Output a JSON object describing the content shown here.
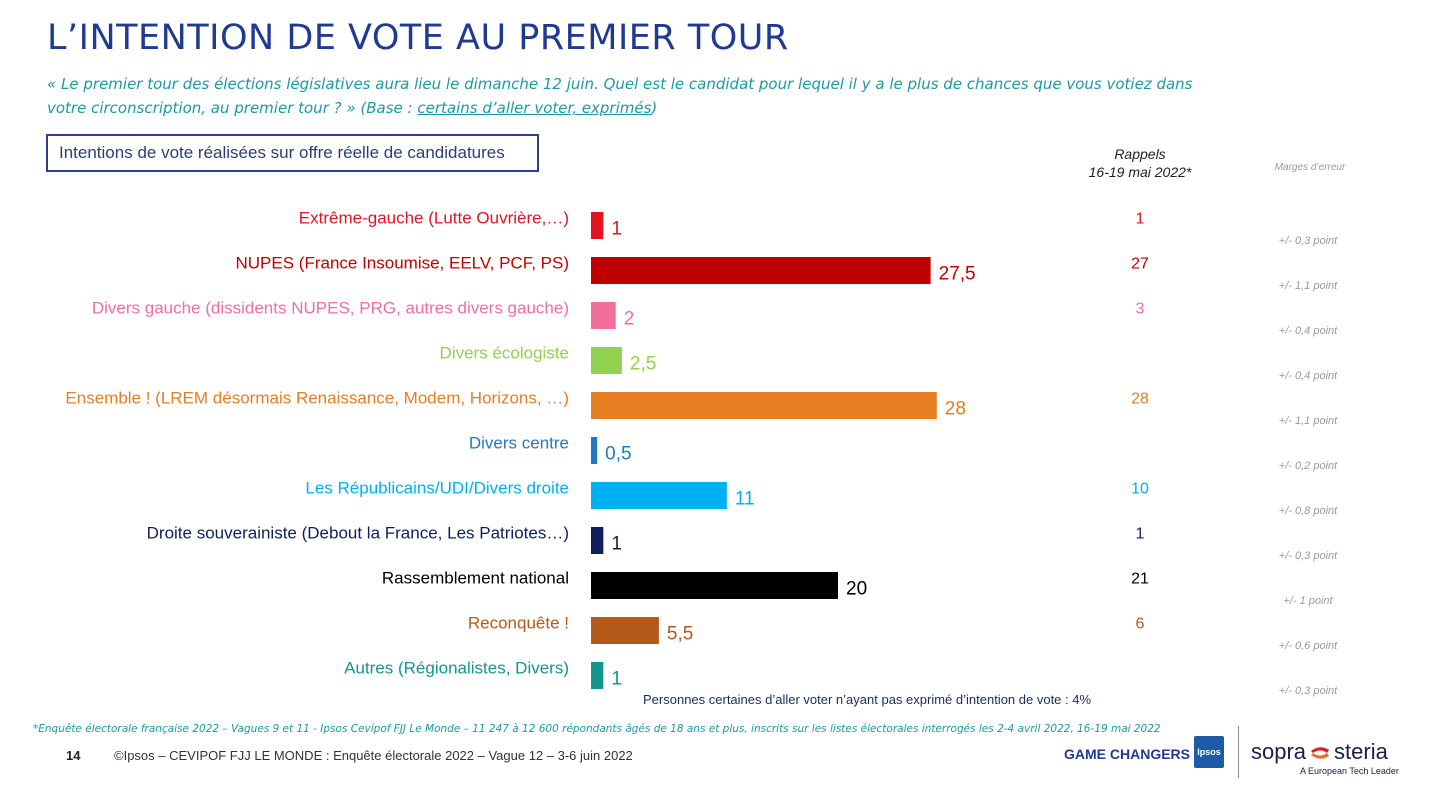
{
  "header": {
    "title": "L’INTENTION DE VOTE AU PREMIER TOUR",
    "question_text": "« Le premier tour des élections législatives aura lieu le dimanche 12 juin. Quel est le candidat pour lequel il y a le plus de chances que vous votiez dans votre circonscription, au premier tour ? » (Base : ",
    "question_base": "certains d’aller voter, exprimés",
    "question_end": ")",
    "box_label": "Intentions de vote réalisées sur offre réelle de candidatures"
  },
  "columns": {
    "rappels_title": "Rappels",
    "rappels_date": "16-19 mai 2022*",
    "marges_title": "Marges d’erreur"
  },
  "chart_data": {
    "type": "bar",
    "orientation": "horizontal",
    "title": "L’INTENTION DE VOTE AU PREMIER TOUR",
    "xlim": [
      0,
      30
    ],
    "categories": [
      "Extrême-gauche (Lutte Ouvrière,…)",
      "NUPES (France Insoumise, EELV, PCF, PS)",
      "Divers gauche (dissidents NUPES, PRG, autres divers gauche)",
      "Divers écologiste",
      "Ensemble ! (LREM désormais Renaissance, Modem, Horizons, …)",
      "Divers centre",
      "Les Républicains/UDI/Divers droite",
      "Droite souverainiste (Debout la France, Les Patriotes…)",
      "Rassemblement national",
      "Reconquête !",
      "Autres (Régionalistes, Divers)"
    ],
    "values": [
      1,
      27.5,
      2,
      2.5,
      28,
      0.5,
      11,
      1,
      20,
      5.5,
      1
    ],
    "value_labels": [
      "1",
      "27,5",
      "2",
      "2,5",
      "28",
      "0,5",
      "11",
      "1",
      "20",
      "5,5",
      "1"
    ],
    "rappels": [
      "1",
      "27",
      "3",
      "",
      "28",
      "",
      "10",
      "1",
      "21",
      "6",
      ""
    ],
    "marges": [
      "+/- 0,3 point",
      "+/- 1,1 point",
      "+/- 0,4 point",
      "+/- 0,4 point",
      "+/- 1,1 point",
      "+/- 0,2 point",
      "+/- 0,8 point",
      "+/- 0,3 point",
      "+/- 1 point",
      "+/- 0,6 point",
      "+/- 0,3 point"
    ],
    "colors": [
      "#e3141f",
      "#c00000",
      "#f36f9b",
      "#92d050",
      "#e67e22",
      "#1f7ac2",
      "#00b0f0",
      "#0f1f5c",
      "#000000",
      "#b5591b",
      "#12968f"
    ]
  },
  "note": "Personnes certaines d’aller voter n’ayant pas exprimé d’intention de vote : 4%",
  "footer": {
    "footnote": "*Enquête électorale française 2022 – Vagues 9 et 11 - Ipsos Cevipof FJJ Le Monde – 11 247 à 12 600 répondants âgés de 18 ans et plus, inscrits sur les listes électorales interrogés les 2-4 avril 2022, 16-19 mai 2022",
    "page_number": "14",
    "copyright": "©Ipsos – CEVIPOF FJJ LE MONDE : Enquête électorale 2022 – Vague 12 – 3-6 juin 2022",
    "game_changers": "GAME CHANGERS",
    "ipsos_logo": "Ipsos",
    "sopra_left": "sopra",
    "sopra_right": "steria",
    "sopra_tagline": "A European Tech Leader"
  }
}
